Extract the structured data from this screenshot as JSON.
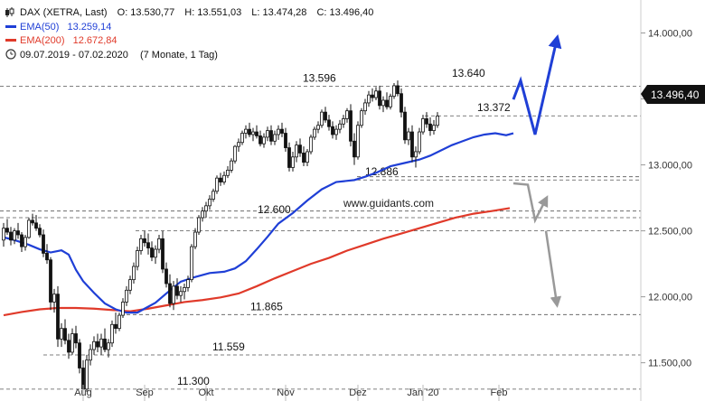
{
  "chart_data": {
    "type": "candlestick",
    "instrument": "DAX (XETRA, Last)",
    "ohlc_summary": {
      "O": "13.530,77",
      "H": "13.551,03",
      "L": "13.474,28",
      "C": "13.496,40"
    },
    "period": "09.07.2019 - 07.02.2020",
    "period_note": "(7 Monate, 1 Tag)",
    "watermark": "www.guidants.com",
    "y_axis": {
      "side": "right",
      "ticks": [
        14000,
        13500,
        13000,
        12500,
        12000,
        11500
      ],
      "tick_labels": [
        "14.000,00",
        "13.500,00",
        "13.000,00",
        "12.500,00",
        "12.000,00",
        "11.500,00"
      ],
      "ylim": [
        11210,
        14250
      ]
    },
    "x_axis": {
      "labels": [
        "Aug",
        "Sep",
        "Okt",
        "Nov",
        "Dez",
        "Jan '20",
        "Feb"
      ],
      "positions": [
        22,
        39,
        56,
        78,
        98,
        116,
        137
      ]
    },
    "last_price": {
      "value": 13496.4,
      "label": "13.496,40",
      "color": "#111111"
    },
    "series": [
      {
        "name": "EMA(50)",
        "legend_value": "13.259,14",
        "color": "#1f3fd6",
        "points": [
          [
            0,
            12451
          ],
          [
            3,
            12430
          ],
          [
            7,
            12394
          ],
          [
            10,
            12360
          ],
          [
            13,
            12336
          ],
          [
            16,
            12352
          ],
          [
            18,
            12320
          ],
          [
            20,
            12205
          ],
          [
            22,
            12118
          ],
          [
            25,
            12030
          ],
          [
            28,
            11950
          ],
          [
            31,
            11905
          ],
          [
            34,
            11880
          ],
          [
            37,
            11880
          ],
          [
            39,
            11910
          ],
          [
            42,
            11955
          ],
          [
            45,
            12025
          ],
          [
            49,
            12115
          ],
          [
            53,
            12150
          ],
          [
            57,
            12180
          ],
          [
            61,
            12190
          ],
          [
            64,
            12215
          ],
          [
            67,
            12270
          ],
          [
            70,
            12360
          ],
          [
            73,
            12455
          ],
          [
            76,
            12555
          ],
          [
            80,
            12635
          ],
          [
            84,
            12730
          ],
          [
            88,
            12815
          ],
          [
            92,
            12870
          ],
          [
            97,
            12885
          ],
          [
            100,
            12910
          ],
          [
            103,
            12940
          ],
          [
            107,
            12990
          ],
          [
            111,
            13015
          ],
          [
            115,
            13040
          ],
          [
            118,
            13070
          ],
          [
            121,
            13110
          ],
          [
            124,
            13150
          ],
          [
            127,
            13180
          ],
          [
            130,
            13210
          ],
          [
            133,
            13230
          ],
          [
            136,
            13240
          ],
          [
            139,
            13225
          ],
          [
            141,
            13240
          ]
        ]
      },
      {
        "name": "EMA(200)",
        "legend_value": "12.672,84",
        "color": "#e03a2a",
        "points": [
          [
            0,
            11860
          ],
          [
            5,
            11885
          ],
          [
            10,
            11905
          ],
          [
            15,
            11915
          ],
          [
            20,
            11915
          ],
          [
            25,
            11910
          ],
          [
            30,
            11900
          ],
          [
            35,
            11890
          ],
          [
            40,
            11910
          ],
          [
            45,
            11935
          ],
          [
            50,
            11960
          ],
          [
            55,
            11975
          ],
          [
            60,
            11995
          ],
          [
            65,
            12025
          ],
          [
            70,
            12080
          ],
          [
            75,
            12140
          ],
          [
            80,
            12195
          ],
          [
            85,
            12250
          ],
          [
            90,
            12295
          ],
          [
            95,
            12350
          ],
          [
            100,
            12395
          ],
          [
            105,
            12440
          ],
          [
            110,
            12480
          ],
          [
            115,
            12520
          ],
          [
            120,
            12560
          ],
          [
            125,
            12600
          ],
          [
            130,
            12630
          ],
          [
            135,
            12650
          ],
          [
            140,
            12672
          ]
        ]
      }
    ],
    "levels": [
      {
        "value": 13596,
        "label": "13.596"
      },
      {
        "value": 13372,
        "label": "13.372"
      },
      {
        "value": 12886,
        "label": "12.886"
      },
      {
        "value": 12600,
        "label": "12.600"
      },
      {
        "value": 12500,
        "label": ""
      },
      {
        "value": 11865,
        "label": "11.865"
      },
      {
        "value": 11559,
        "label": "11.559"
      },
      {
        "value": 11300,
        "label": "11.300"
      }
    ],
    "annotation_labels": [
      {
        "text": "13.640",
        "value": 13640,
        "index": 126
      }
    ],
    "candles": [
      [
        12430,
        12560,
        12380,
        12520
      ],
      [
        12520,
        12590,
        12470,
        12490
      ],
      [
        12490,
        12530,
        12390,
        12430
      ],
      [
        12430,
        12520,
        12400,
        12500
      ],
      [
        12500,
        12560,
        12440,
        12470
      ],
      [
        12470,
        12490,
        12340,
        12380
      ],
      [
        12380,
        12470,
        12350,
        12450
      ],
      [
        12450,
        12600,
        12440,
        12580
      ],
      [
        12580,
        12630,
        12540,
        12560
      ],
      [
        12560,
        12620,
        12500,
        12520
      ],
      [
        12520,
        12550,
        12450,
        12470
      ],
      [
        12470,
        12510,
        12300,
        12330
      ],
      [
        12330,
        12400,
        12250,
        12280
      ],
      [
        12280,
        12300,
        11900,
        11960
      ],
      [
        11960,
        12060,
        11880,
        12020
      ],
      [
        12020,
        12080,
        11620,
        11680
      ],
      [
        11680,
        11800,
        11620,
        11760
      ],
      [
        11760,
        11830,
        11640,
        11670
      ],
      [
        11670,
        11720,
        11530,
        11580
      ],
      [
        11580,
        11760,
        11560,
        11720
      ],
      [
        11720,
        11780,
        11610,
        11650
      ],
      [
        11650,
        11680,
        11420,
        11460
      ],
      [
        11460,
        11520,
        11260,
        11300
      ],
      [
        11300,
        11560,
        11280,
        11520
      ],
      [
        11520,
        11640,
        11480,
        11600
      ],
      [
        11600,
        11700,
        11560,
        11660
      ],
      [
        11660,
        11720,
        11580,
        11620
      ],
      [
        11620,
        11720,
        11560,
        11680
      ],
      [
        11680,
        11760,
        11580,
        11600
      ],
      [
        11600,
        11680,
        11540,
        11650
      ],
      [
        11650,
        11820,
        11620,
        11790
      ],
      [
        11790,
        11880,
        11720,
        11760
      ],
      [
        11760,
        11880,
        11740,
        11860
      ],
      [
        11860,
        11990,
        11840,
        11960
      ],
      [
        11960,
        12080,
        11930,
        12050
      ],
      [
        12050,
        12160,
        12020,
        12130
      ],
      [
        12130,
        12260,
        12100,
        12230
      ],
      [
        12230,
        12380,
        12200,
        12350
      ],
      [
        12350,
        12470,
        12320,
        12440
      ],
      [
        12440,
        12500,
        12380,
        12410
      ],
      [
        12410,
        12480,
        12320,
        12370
      ],
      [
        12370,
        12420,
        12270,
        12300
      ],
      [
        12300,
        12390,
        12250,
        12360
      ],
      [
        12360,
        12470,
        12330,
        12440
      ],
      [
        12440,
        12500,
        12180,
        12210
      ],
      [
        12210,
        12260,
        12070,
        12100
      ],
      [
        12100,
        12170,
        11920,
        11950
      ],
      [
        11950,
        12120,
        11900,
        12080
      ],
      [
        12080,
        12140,
        11980,
        12010
      ],
      [
        12010,
        12080,
        11960,
        12040
      ],
      [
        12040,
        12100,
        11980,
        12070
      ],
      [
        12070,
        12160,
        12040,
        12130
      ],
      [
        12130,
        12400,
        12110,
        12380
      ],
      [
        12380,
        12520,
        12360,
        12490
      ],
      [
        12490,
        12620,
        12470,
        12600
      ],
      [
        12600,
        12680,
        12570,
        12650
      ],
      [
        12650,
        12720,
        12600,
        12690
      ],
      [
        12690,
        12770,
        12660,
        12740
      ],
      [
        12740,
        12820,
        12720,
        12800
      ],
      [
        12800,
        12920,
        12780,
        12900
      ],
      [
        12900,
        12940,
        12840,
        12870
      ],
      [
        12870,
        12950,
        12850,
        12920
      ],
      [
        12920,
        12990,
        12900,
        12960
      ],
      [
        12960,
        13050,
        12940,
        13030
      ],
      [
        13030,
        13150,
        13010,
        13140
      ],
      [
        13140,
        13200,
        13100,
        13170
      ],
      [
        13170,
        13260,
        13150,
        13240
      ],
      [
        13240,
        13300,
        13200,
        13270
      ],
      [
        13270,
        13320,
        13210,
        13230
      ],
      [
        13230,
        13280,
        13180,
        13250
      ],
      [
        13250,
        13300,
        13200,
        13220
      ],
      [
        13220,
        13260,
        13140,
        13160
      ],
      [
        13160,
        13240,
        13130,
        13210
      ],
      [
        13210,
        13290,
        13180,
        13260
      ],
      [
        13260,
        13300,
        13150,
        13180
      ],
      [
        13180,
        13260,
        13150,
        13230
      ],
      [
        13230,
        13300,
        13190,
        13270
      ],
      [
        13270,
        13320,
        13210,
        13240
      ],
      [
        13240,
        13280,
        13100,
        13130
      ],
      [
        13130,
        13170,
        12950,
        12980
      ],
      [
        12980,
        13100,
        12950,
        13060
      ],
      [
        13060,
        13180,
        13020,
        13150
      ],
      [
        13150,
        13200,
        13060,
        13090
      ],
      [
        13090,
        13140,
        12990,
        13020
      ],
      [
        13020,
        13120,
        12990,
        13100
      ],
      [
        13100,
        13230,
        13080,
        13210
      ],
      [
        13210,
        13290,
        13190,
        13270
      ],
      [
        13270,
        13330,
        13240,
        13300
      ],
      [
        13300,
        13420,
        13280,
        13400
      ],
      [
        13400,
        13440,
        13320,
        13340
      ],
      [
        13340,
        13380,
        13260,
        13290
      ],
      [
        13290,
        13330,
        13200,
        13230
      ],
      [
        13230,
        13300,
        13190,
        13270
      ],
      [
        13270,
        13340,
        13240,
        13310
      ],
      [
        13310,
        13380,
        13280,
        13350
      ],
      [
        13350,
        13430,
        13320,
        13410
      ],
      [
        13410,
        13460,
        13140,
        13180
      ],
      [
        13180,
        13240,
        13000,
        13060
      ],
      [
        13060,
        13330,
        13040,
        13300
      ],
      [
        13300,
        13430,
        13280,
        13410
      ],
      [
        13410,
        13500,
        13380,
        13470
      ],
      [
        13470,
        13560,
        13440,
        13530
      ],
      [
        13530,
        13580,
        13480,
        13510
      ],
      [
        13510,
        13590,
        13490,
        13560
      ],
      [
        13560,
        13600,
        13420,
        13450
      ],
      [
        13450,
        13520,
        13400,
        13490
      ],
      [
        13490,
        13550,
        13420,
        13440
      ],
      [
        13440,
        13540,
        13420,
        13520
      ],
      [
        13520,
        13620,
        13500,
        13600
      ],
      [
        13600,
        13640,
        13520,
        13540
      ],
      [
        13540,
        13580,
        13360,
        13400
      ],
      [
        13400,
        13440,
        13160,
        13190
      ],
      [
        13190,
        13280,
        13150,
        13250
      ],
      [
        13250,
        13300,
        13020,
        13060
      ],
      [
        13060,
        13140,
        12980,
        13100
      ],
      [
        13100,
        13280,
        13080,
        13250
      ],
      [
        13250,
        13380,
        13230,
        13350
      ],
      [
        13350,
        13400,
        13280,
        13310
      ],
      [
        13310,
        13360,
        13220,
        13260
      ],
      [
        13260,
        13340,
        13230,
        13300
      ],
      [
        13300,
        13400,
        13280,
        13370
      ]
    ],
    "projections": [
      {
        "name": "bullish",
        "color": "#1f3fd6",
        "points": [
          [
            141,
            13496
          ],
          [
            143,
            13640
          ],
          [
            147,
            13230
          ],
          [
            153,
            13950
          ]
        ]
      },
      {
        "name": "bearish",
        "color": "#999999",
        "points": [
          [
            141,
            12860
          ],
          [
            145,
            12850
          ],
          [
            147,
            12580
          ],
          [
            150,
            12740
          ]
        ]
      },
      {
        "name": "bearish-extension",
        "color": "#999999",
        "points": [
          [
            150,
            12500
          ],
          [
            153,
            11950
          ]
        ]
      }
    ]
  }
}
